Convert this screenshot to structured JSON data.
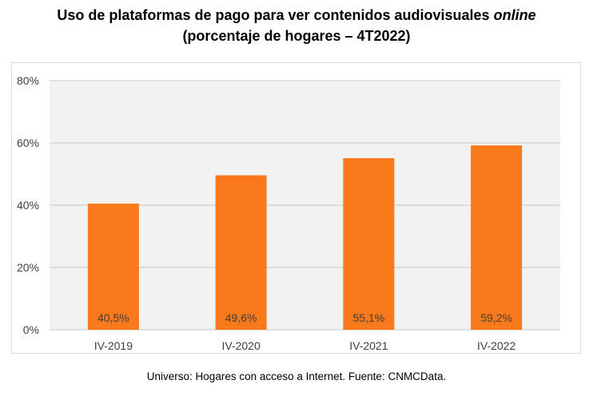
{
  "title": {
    "line1_main": "Uso de plataformas de pago para ver contenidos audiovisuales",
    "line1_emph": "online",
    "line2": "(porcentaje de hogares – 4T2022)"
  },
  "footnote": "Universo: Hogares con acceso a Internet. Fuente: CNMCData.",
  "colors": {
    "bar": "#fa7a1b",
    "plot_background": "#f2f2f2",
    "gridline": "#c8c8c8"
  },
  "chart_data": {
    "type": "bar",
    "title": "Uso de plataformas de pago para ver contenidos audiovisuales online (porcentaje de hogares – 4T2022)",
    "categories": [
      "IV-2019",
      "IV-2020",
      "IV-2021",
      "IV-2022"
    ],
    "values": [
      40.5,
      49.6,
      55.1,
      59.2
    ],
    "value_labels": [
      "40,5%",
      "49,6%",
      "55,1%",
      "59,2%"
    ],
    "y_ticks": [
      0,
      20,
      40,
      60,
      80
    ],
    "y_tick_labels": [
      "0%",
      "20%",
      "40%",
      "60%",
      "80%"
    ],
    "ylim": [
      0,
      80
    ],
    "xlabel": "",
    "ylabel": "",
    "grid": true,
    "legend": "none"
  }
}
